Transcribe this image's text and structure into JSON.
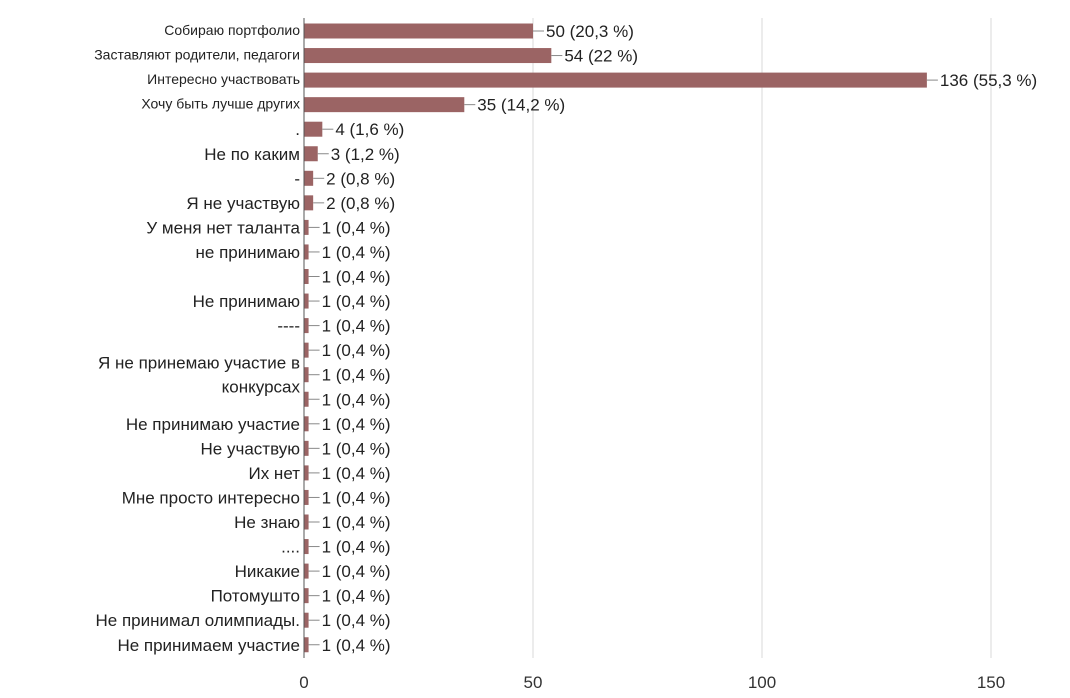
{
  "chart_data": {
    "type": "bar",
    "orientation": "horizontal",
    "title": "",
    "xlabel": "",
    "ylabel": "",
    "xlim": [
      0,
      150
    ],
    "x_ticks": [
      0,
      50,
      100,
      150
    ],
    "grid": true,
    "legend": "none",
    "bar_color": "#9b6464",
    "categories": [
      "Собираю портфолио",
      "Заставляют родители, педагоги",
      "Интересно участвовать",
      "Хочу быть лучше других",
      ".",
      "Не по каким",
      "-",
      "Я не участвую",
      "У меня нет таланта",
      "не принимаю",
      "",
      "Не принимаю",
      "----",
      "",
      "",
      "",
      "Не принимаю участие",
      "Не участвую",
      "Их нет",
      "Мне просто интересно",
      "Не знаю",
      "....",
      "Никакие",
      "Потомушто",
      "Не принимал олимпиады.",
      "Не принимаем участие"
    ],
    "wrapped_label": {
      "text": "Я не принемаю участие в конкурсах",
      "lines": [
        "Я не принемаю участие в",
        "конкурсах"
      ]
    },
    "values": [
      50,
      54,
      136,
      35,
      4,
      3,
      2,
      2,
      1,
      1,
      1,
      1,
      1,
      1,
      1,
      1,
      1,
      1,
      1,
      1,
      1,
      1,
      1,
      1,
      1,
      1
    ],
    "value_labels": [
      "50 (20,3 %)",
      "54 (22 %)",
      "136 (55,3 %)",
      "35 (14,2 %)",
      "4 (1,6 %)",
      "3 (1,2 %)",
      "2 (0,8 %)",
      "2 (0,8 %)",
      "1 (0,4 %)",
      "1 (0,4 %)",
      "1 (0,4 %)",
      "1 (0,4 %)",
      "1 (0,4 %)",
      "1 (0,4 %)",
      "1 (0,4 %)",
      "1 (0,4 %)",
      "1 (0,4 %)",
      "1 (0,4 %)",
      "1 (0,4 %)",
      "1 (0,4 %)",
      "1 (0,4 %)",
      "1 (0,4 %)",
      "1 (0,4 %)",
      "1 (0,4 %)",
      "1 (0,4 %)",
      "1 (0,4 %)"
    ]
  }
}
